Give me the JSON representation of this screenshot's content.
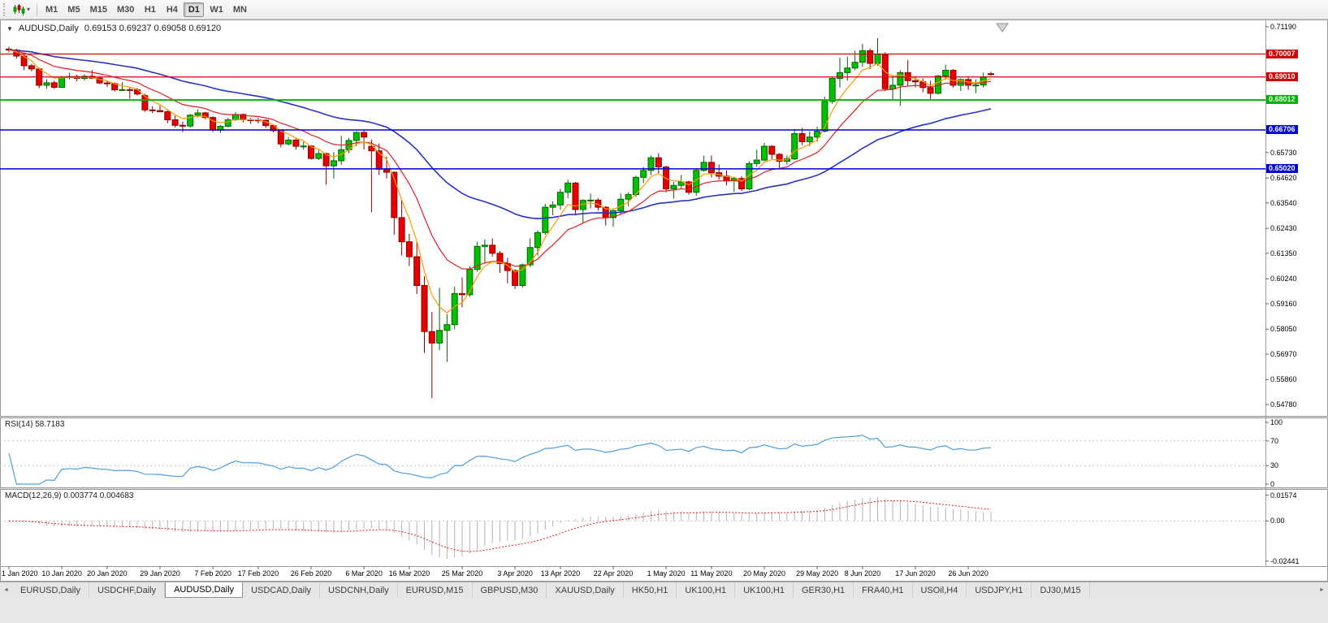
{
  "toolbar": {
    "timeframes": [
      "M1",
      "M5",
      "M15",
      "M30",
      "H1",
      "H4",
      "D1",
      "W1",
      "MN"
    ],
    "active_timeframe": "D1",
    "dropdown_glyph": "▾"
  },
  "window": {
    "title": "AUDUSD,Daily",
    "ohlc_readout": "0.69153 0.69237 0.69058 0.69120",
    "collapse_glyph": "▼"
  },
  "tabbar": {
    "scroll_left_glyph": "◄",
    "scroll_right_glyph": "►",
    "tabs": [
      {
        "label": "EURUSD,Daily",
        "active": false
      },
      {
        "label": "USDCHF,Daily",
        "active": false
      },
      {
        "label": "AUDUSD,Daily",
        "active": true
      },
      {
        "label": "USDCAD,Daily",
        "active": false
      },
      {
        "label": "USDCNH,Daily",
        "active": false
      },
      {
        "label": "EURUSD,M15",
        "active": false
      },
      {
        "label": "GBPUSD,M30",
        "active": false
      },
      {
        "label": "XAUUSD,Daily",
        "active": false
      },
      {
        "label": "HK50,H1",
        "active": false
      },
      {
        "label": "UK100,H1",
        "active": false
      },
      {
        "label": "UK100,H1",
        "active": false
      },
      {
        "label": "GER30,H1",
        "active": false
      },
      {
        "label": "FRA40,H1",
        "active": false
      },
      {
        "label": "USOil,H4",
        "active": false
      },
      {
        "label": "USDJPY,H1",
        "active": false
      },
      {
        "label": "DJ30,M15",
        "active": false
      }
    ]
  },
  "chart_data": {
    "type": "candlestick",
    "symbol": "AUDUSD",
    "period": "Daily",
    "title": "AUDUSD,Daily",
    "ohlc_current": {
      "open": 0.69153,
      "high": 0.69237,
      "low": 0.69058,
      "close": 0.6912
    },
    "price_axis": {
      "ymin": 0.5478,
      "ymax": 0.7119,
      "ticks": [
        "0.71190",
        "0.65730",
        "0.64620",
        "0.63540",
        "0.62430",
        "0.61350",
        "0.60240",
        "0.59160",
        "0.58050",
        "0.56970",
        "0.55860",
        "0.54780"
      ]
    },
    "hlines": [
      {
        "label": "0.70007",
        "price": 0.70007,
        "color": "#d40000",
        "width": 1.2
      },
      {
        "label": "0.69010",
        "price": 0.6901,
        "color": "#d40000",
        "width": 1.2
      },
      {
        "label": "0.68012",
        "price": 0.68012,
        "color": "#00b400",
        "width": 1.8
      },
      {
        "label": "0.66706",
        "price": 0.66706,
        "color": "#0000d2",
        "width": 1.5
      },
      {
        "label": "0.65020",
        "price": 0.6502,
        "color": "#0000d2",
        "width": 1.5
      }
    ],
    "date_axis": [
      {
        "label": "1 Jan 2020",
        "i": 0
      },
      {
        "label": "10 Jan 2020",
        "i": 7
      },
      {
        "label": "20 Jan 2020",
        "i": 13
      },
      {
        "label": "29 Jan 2020",
        "i": 20
      },
      {
        "label": "7 Feb 2020",
        "i": 27
      },
      {
        "label": "17 Feb 2020",
        "i": 33
      },
      {
        "label": "26 Feb 2020",
        "i": 40
      },
      {
        "label": "6 Mar 2020",
        "i": 47
      },
      {
        "label": "16 Mar 2020",
        "i": 53
      },
      {
        "label": "25 Mar 2020",
        "i": 60
      },
      {
        "label": "3 Apr 2020",
        "i": 67
      },
      {
        "label": "13 Apr 2020",
        "i": 73
      },
      {
        "label": "22 Apr 2020",
        "i": 80
      },
      {
        "label": "1 May 2020",
        "i": 87
      },
      {
        "label": "11 May 2020",
        "i": 93
      },
      {
        "label": "20 May 2020",
        "i": 100
      },
      {
        "label": "29 May 2020",
        "i": 107
      },
      {
        "label": "8 Jun 2020",
        "i": 113
      },
      {
        "label": "17 Jun 2020",
        "i": 120
      },
      {
        "label": "26 Jun 2020",
        "i": 127
      }
    ],
    "candles": [
      [
        0.7022,
        0.7032,
        0.7008,
        0.7018
      ],
      [
        0.7018,
        0.7024,
        0.698,
        0.6992
      ],
      [
        0.6992,
        0.7004,
        0.693,
        0.695
      ],
      [
        0.695,
        0.6958,
        0.6925,
        0.6936
      ],
      [
        0.6936,
        0.6941,
        0.6852,
        0.6865
      ],
      [
        0.6865,
        0.6892,
        0.685,
        0.6876
      ],
      [
        0.6876,
        0.6885,
        0.6849,
        0.6856
      ],
      [
        0.6856,
        0.6906,
        0.6853,
        0.69
      ],
      [
        0.69,
        0.692,
        0.689,
        0.6903
      ],
      [
        0.6903,
        0.6911,
        0.6882,
        0.6895
      ],
      [
        0.6895,
        0.6912,
        0.6885,
        0.6904
      ],
      [
        0.6904,
        0.6932,
        0.6892,
        0.6896
      ],
      [
        0.6896,
        0.6903,
        0.687,
        0.6875
      ],
      [
        0.6875,
        0.6884,
        0.6858,
        0.6872
      ],
      [
        0.6872,
        0.6878,
        0.6838,
        0.6845
      ],
      [
        0.6845,
        0.6878,
        0.684,
        0.6846
      ],
      [
        0.6846,
        0.6855,
        0.6807,
        0.6845
      ],
      [
        0.6845,
        0.6854,
        0.682,
        0.6827
      ],
      [
        0.682,
        0.6828,
        0.675,
        0.6758
      ],
      [
        0.6758,
        0.6774,
        0.6744,
        0.6755
      ],
      [
        0.6755,
        0.6777,
        0.6748,
        0.675
      ],
      [
        0.675,
        0.6758,
        0.67,
        0.6715
      ],
      [
        0.6715,
        0.6733,
        0.6682,
        0.6691
      ],
      [
        0.6691,
        0.6707,
        0.6662,
        0.6688
      ],
      [
        0.6688,
        0.674,
        0.668,
        0.6735
      ],
      [
        0.6735,
        0.676,
        0.6725,
        0.6745
      ],
      [
        0.6745,
        0.675,
        0.6717,
        0.6725
      ],
      [
        0.6725,
        0.673,
        0.6662,
        0.667
      ],
      [
        0.667,
        0.6692,
        0.6658,
        0.6687
      ],
      [
        0.6687,
        0.6723,
        0.6683,
        0.6715
      ],
      [
        0.6715,
        0.6748,
        0.671,
        0.6738
      ],
      [
        0.6738,
        0.6742,
        0.6704,
        0.6715
      ],
      [
        0.6715,
        0.6723,
        0.6697,
        0.6714
      ],
      [
        0.6714,
        0.6723,
        0.67,
        0.6713
      ],
      [
        0.6713,
        0.6716,
        0.668,
        0.669
      ],
      [
        0.669,
        0.6695,
        0.666,
        0.6668
      ],
      [
        0.6668,
        0.6672,
        0.6595,
        0.661
      ],
      [
        0.661,
        0.664,
        0.6603,
        0.6627
      ],
      [
        0.6627,
        0.6633,
        0.6585,
        0.66
      ],
      [
        0.66,
        0.662,
        0.6585,
        0.6601
      ],
      [
        0.6601,
        0.6605,
        0.6542,
        0.6547
      ],
      [
        0.6547,
        0.6585,
        0.654,
        0.6568
      ],
      [
        0.6568,
        0.6572,
        0.6433,
        0.6515
      ],
      [
        0.6515,
        0.6575,
        0.646,
        0.6537
      ],
      [
        0.6537,
        0.6645,
        0.652,
        0.6585
      ],
      [
        0.6585,
        0.6635,
        0.657,
        0.6625
      ],
      [
        0.6625,
        0.6665,
        0.66,
        0.666
      ],
      [
        0.666,
        0.667,
        0.6585,
        0.664
      ],
      [
        0.66,
        0.663,
        0.6313,
        0.658
      ],
      [
        0.658,
        0.6612,
        0.6475,
        0.65
      ],
      [
        0.65,
        0.6555,
        0.646,
        0.6487
      ],
      [
        0.6487,
        0.649,
        0.6215,
        0.629
      ],
      [
        0.629,
        0.6365,
        0.6125,
        0.6185
      ],
      [
        0.6185,
        0.622,
        0.608,
        0.612
      ],
      [
        0.612,
        0.6185,
        0.5958,
        0.5995
      ],
      [
        0.5995,
        0.6035,
        0.5702,
        0.5795
      ],
      [
        0.5795,
        0.588,
        0.5506,
        0.5745
      ],
      [
        0.5745,
        0.5985,
        0.5715,
        0.58
      ],
      [
        0.58,
        0.587,
        0.5663,
        0.5825
      ],
      [
        0.5825,
        0.599,
        0.5805,
        0.596
      ],
      [
        0.596,
        0.603,
        0.59,
        0.5955
      ],
      [
        0.5955,
        0.608,
        0.5945,
        0.6065
      ],
      [
        0.6065,
        0.6185,
        0.6055,
        0.6165
      ],
      [
        0.6165,
        0.6195,
        0.609,
        0.617
      ],
      [
        0.617,
        0.62,
        0.612,
        0.6135
      ],
      [
        0.6135,
        0.6145,
        0.605,
        0.609
      ],
      [
        0.609,
        0.6115,
        0.6005,
        0.606
      ],
      [
        0.606,
        0.6065,
        0.598,
        0.5995
      ],
      [
        0.5995,
        0.609,
        0.5985,
        0.6085
      ],
      [
        0.6085,
        0.62,
        0.6075,
        0.616
      ],
      [
        0.616,
        0.6235,
        0.6125,
        0.6225
      ],
      [
        0.6225,
        0.635,
        0.6215,
        0.6335
      ],
      [
        0.6335,
        0.636,
        0.63,
        0.6345
      ],
      [
        0.6345,
        0.6415,
        0.6325,
        0.64
      ],
      [
        0.64,
        0.6455,
        0.6375,
        0.644
      ],
      [
        0.644,
        0.6445,
        0.63,
        0.6325
      ],
      [
        0.6325,
        0.637,
        0.6265,
        0.6365
      ],
      [
        0.6365,
        0.6395,
        0.633,
        0.6366
      ],
      [
        0.6366,
        0.6375,
        0.632,
        0.6335
      ],
      [
        0.6335,
        0.634,
        0.6255,
        0.629
      ],
      [
        0.629,
        0.633,
        0.625,
        0.632
      ],
      [
        0.632,
        0.6395,
        0.6305,
        0.637
      ],
      [
        0.637,
        0.64,
        0.634,
        0.639
      ],
      [
        0.639,
        0.6472,
        0.638,
        0.6465
      ],
      [
        0.6465,
        0.651,
        0.644,
        0.6495
      ],
      [
        0.6495,
        0.656,
        0.6475,
        0.655
      ],
      [
        0.655,
        0.657,
        0.648,
        0.651
      ],
      [
        0.651,
        0.6515,
        0.64,
        0.6415
      ],
      [
        0.6415,
        0.6445,
        0.6372,
        0.643
      ],
      [
        0.643,
        0.6475,
        0.6415,
        0.6445
      ],
      [
        0.6445,
        0.645,
        0.639,
        0.64
      ],
      [
        0.64,
        0.6505,
        0.6385,
        0.6495
      ],
      [
        0.6495,
        0.656,
        0.649,
        0.653
      ],
      [
        0.653,
        0.656,
        0.6465,
        0.6485
      ],
      [
        0.6485,
        0.652,
        0.6455,
        0.647
      ],
      [
        0.647,
        0.6495,
        0.643,
        0.645
      ],
      [
        0.645,
        0.6465,
        0.6402,
        0.646
      ],
      [
        0.646,
        0.647,
        0.6405,
        0.6415
      ],
      [
        0.6415,
        0.6535,
        0.641,
        0.6525
      ],
      [
        0.6525,
        0.6585,
        0.651,
        0.654
      ],
      [
        0.654,
        0.6615,
        0.6535,
        0.66
      ],
      [
        0.66,
        0.6605,
        0.6545,
        0.6565
      ],
      [
        0.6565,
        0.657,
        0.6505,
        0.6535
      ],
      [
        0.6535,
        0.656,
        0.652,
        0.6545
      ],
      [
        0.6545,
        0.6675,
        0.654,
        0.6655
      ],
      [
        0.6655,
        0.668,
        0.6605,
        0.662
      ],
      [
        0.662,
        0.6665,
        0.66,
        0.664
      ],
      [
        0.664,
        0.6685,
        0.662,
        0.6665
      ],
      [
        0.6665,
        0.6815,
        0.666,
        0.6795
      ],
      [
        0.6795,
        0.69,
        0.6785,
        0.6895
      ],
      [
        0.6895,
        0.6985,
        0.6855,
        0.692
      ],
      [
        0.692,
        0.699,
        0.6885,
        0.694
      ],
      [
        0.694,
        0.7015,
        0.693,
        0.6965
      ],
      [
        0.6965,
        0.7045,
        0.6945,
        0.7015
      ],
      [
        0.7015,
        0.7025,
        0.6935,
        0.696
      ],
      [
        0.696,
        0.707,
        0.695,
        0.7
      ],
      [
        0.7,
        0.701,
        0.684,
        0.685
      ],
      [
        0.685,
        0.691,
        0.68,
        0.6865
      ],
      [
        0.6865,
        0.693,
        0.6775,
        0.692
      ],
      [
        0.692,
        0.6975,
        0.686,
        0.6885
      ],
      [
        0.6885,
        0.6905,
        0.6855,
        0.688
      ],
      [
        0.688,
        0.6895,
        0.6835,
        0.6855
      ],
      [
        0.6855,
        0.6885,
        0.6805,
        0.683
      ],
      [
        0.683,
        0.691,
        0.6825,
        0.6905
      ],
      [
        0.6905,
        0.6955,
        0.689,
        0.693
      ],
      [
        0.693,
        0.6935,
        0.6855,
        0.6865
      ],
      [
        0.6865,
        0.6895,
        0.684,
        0.689
      ],
      [
        0.689,
        0.69,
        0.6845,
        0.6865
      ],
      [
        0.6865,
        0.689,
        0.683,
        0.6866
      ],
      [
        0.6866,
        0.692,
        0.6855,
        0.6902
      ],
      [
        0.69153,
        0.69237,
        0.69058,
        0.6912
      ]
    ],
    "overlays": [
      {
        "name": "ma-slow",
        "type": "ema",
        "period": 40,
        "color": "#2832c8",
        "width": 1.6
      },
      {
        "name": "ma-medium",
        "type": "ema",
        "period": 13,
        "color": "#e02020",
        "width": 1.2
      },
      {
        "name": "ma-fast",
        "type": "ema",
        "period": 5,
        "color": "#ff9900",
        "width": 1.2
      }
    ],
    "rsi": {
      "label": "RSI(14) 58.7183",
      "period": 14,
      "value": 58.7183,
      "color": "#4d9ee0",
      "levels": [
        70,
        30
      ],
      "axis": [
        {
          "label": "100",
          "v": 100
        },
        {
          "label": "70",
          "v": 70
        },
        {
          "label": "30",
          "v": 30
        },
        {
          "label": "0",
          "v": 0
        }
      ]
    },
    "macd": {
      "label": "MACD(12,26,9) 0.003774 0.004683",
      "fast": 12,
      "slow": 26,
      "signal_period": 9,
      "value": 0.003774,
      "signal_value": 0.004683,
      "histogram_color": "#b4b4b4",
      "signal_color": "#e02020",
      "axis": [
        {
          "label": "0.01574",
          "v": 0.01574
        },
        {
          "label": "0.00",
          "v": 0
        },
        {
          "label": "-0.02441",
          "v": -0.02441
        }
      ]
    },
    "style": {
      "background": "#ffffff",
      "candle_up": "#00c000",
      "candle_up_border": "#006600",
      "candle_down": "#e60000",
      "candle_down_border": "#8b0000",
      "axis_color": "#9a9a9a"
    }
  }
}
